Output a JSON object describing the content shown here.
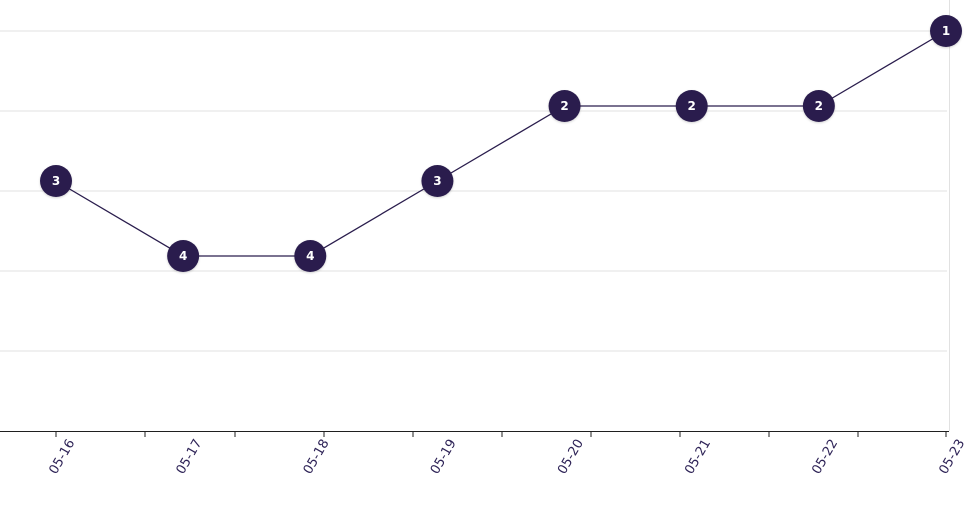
{
  "chart_data": {
    "type": "line",
    "x": [
      "05-16",
      "05-17",
      "05-18",
      "05-19",
      "05-20",
      "05-21",
      "05-22",
      "05-23"
    ],
    "series": [
      {
        "values": [
          3,
          4,
          4,
          3,
          2,
          2,
          2,
          1
        ]
      }
    ],
    "y_reversed": true,
    "ylim": [
      1,
      5
    ],
    "grid": true,
    "point_labels": true
  },
  "colors": {
    "line": "#2a1d4d",
    "point": "#2a1d4d",
    "point_text": "#ffffff",
    "grid": "#e1e1e1",
    "axis": "#1f1f1f",
    "tick_label": "#2d2256"
  }
}
